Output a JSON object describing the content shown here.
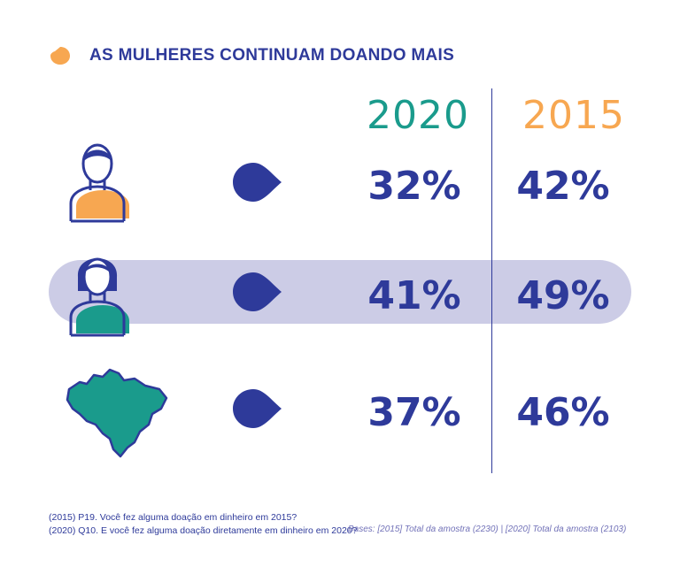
{
  "title": "AS MULHERES CONTINUAM DOANDO MAIS",
  "colors": {
    "accent_blue": "#2e3a9a",
    "teal": "#1a9b8c",
    "orange": "#f7a751",
    "highlight": "#cccce6"
  },
  "chart_data": {
    "type": "table",
    "columns": [
      "2020",
      "2015"
    ],
    "rows": [
      {
        "icon": "man-icon",
        "values": [
          "32%",
          "42%"
        ]
      },
      {
        "icon": "woman-icon",
        "values": [
          "41%",
          "49%"
        ],
        "highlighted": true
      },
      {
        "icon": "brazil-map-icon",
        "values": [
          "37%",
          "46%"
        ]
      }
    ]
  },
  "footnotes": {
    "line1": "(2015) P19. Você fez alguma doação em dinheiro em 2015?",
    "line2": "(2020) Q10. E você fez alguma doação diretamente em dinheiro em 2020?",
    "bases": "Bases: [2015] Total da amostra (2230) | [2020] Total da amostra (2103)"
  }
}
